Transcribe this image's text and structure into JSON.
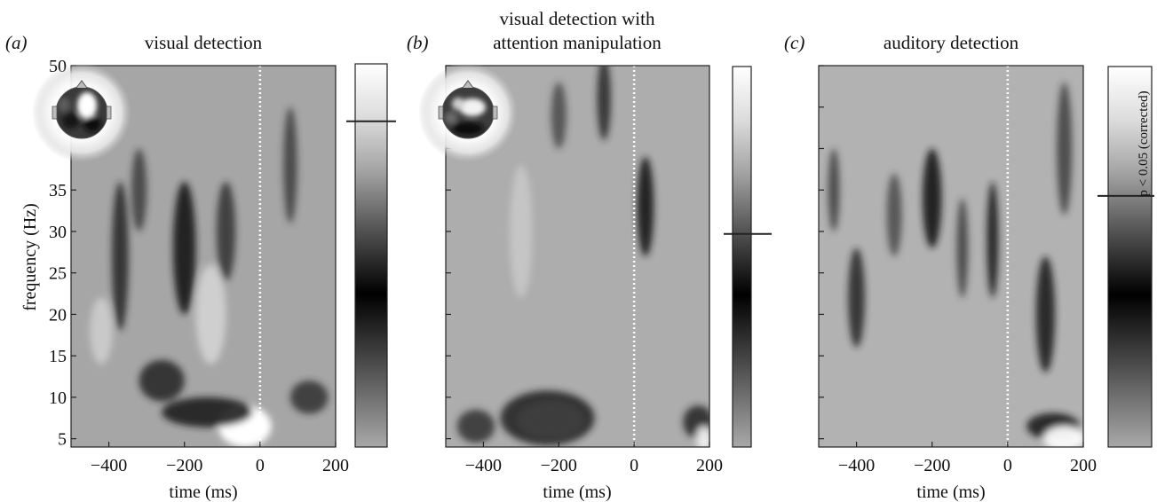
{
  "chart_data": [
    {
      "type": "heatmap",
      "panel_letter": "(a)",
      "title": "visual detection",
      "xlabel": "time (ms)",
      "ylabel": "frequency (Hz)",
      "xlim": [
        -500,
        200
      ],
      "ylim": [
        4,
        50
      ],
      "x_ticks": [
        -400,
        -200,
        0,
        200
      ],
      "y_ticks": [
        5,
        10,
        15,
        20,
        25,
        30,
        35,
        50
      ],
      "y_tick_labels": true,
      "stimulus_onset_ms": 0,
      "has_topography_inset": true,
      "colorbar": {
        "threshold_level": 0.85,
        "label": ""
      },
      "blobs": [
        {
          "t": -40,
          "f": 6.5,
          "rt": 70,
          "rf": 2.5,
          "v": 1.0
        },
        {
          "t": -140,
          "f": 8.2,
          "rt": 120,
          "rf": 1.8,
          "v": -0.8
        },
        {
          "t": -200,
          "f": 28,
          "rt": 30,
          "rf": 8,
          "v": -0.9
        },
        {
          "t": -90,
          "f": 30,
          "rt": 25,
          "rf": 6,
          "v": -0.6
        },
        {
          "t": -370,
          "f": 27,
          "rt": 22,
          "rf": 9,
          "v": -0.7
        },
        {
          "t": -260,
          "f": 12,
          "rt": 60,
          "rf": 2.5,
          "v": -0.7
        },
        {
          "t": 130,
          "f": 10,
          "rt": 50,
          "rf": 2,
          "v": -0.6
        },
        {
          "t": -130,
          "f": 20,
          "rt": 40,
          "rf": 6,
          "v": 0.4
        },
        {
          "t": -320,
          "f": 35,
          "rt": 20,
          "rf": 5,
          "v": -0.5
        },
        {
          "t": 80,
          "f": 38,
          "rt": 18,
          "rf": 7,
          "v": -0.5
        },
        {
          "t": -420,
          "f": 18,
          "rt": 30,
          "rf": 4,
          "v": 0.3
        }
      ]
    },
    {
      "type": "heatmap",
      "panel_letter": "(b)",
      "title": "visual detection with attention manipulation",
      "title_lines": [
        "visual detection with",
        "attention manipulation"
      ],
      "xlabel": "time (ms)",
      "ylabel": "",
      "xlim": [
        -500,
        200
      ],
      "ylim": [
        4,
        50
      ],
      "x_ticks": [
        -400,
        -200,
        0,
        200
      ],
      "y_ticks": [
        5,
        10,
        15,
        20,
        25,
        30,
        35,
        50
      ],
      "y_tick_labels": false,
      "stimulus_onset_ms": 0,
      "has_topography_inset": true,
      "colorbar": {
        "threshold_level": 0.56,
        "label": ""
      },
      "blobs": [
        {
          "t": -220,
          "f": 7.2,
          "rt": 85,
          "rf": 2.2,
          "v": 1.0
        },
        {
          "t": -230,
          "f": 7.5,
          "rt": 125,
          "rf": 3.3,
          "v": -0.75
        },
        {
          "t": 30,
          "f": 33,
          "rt": 22,
          "rf": 6,
          "v": -0.9
        },
        {
          "t": -80,
          "f": 46,
          "rt": 18,
          "rf": 5,
          "v": -0.7
        },
        {
          "t": -200,
          "f": 44,
          "rt": 20,
          "rf": 4,
          "v": -0.4
        },
        {
          "t": 170,
          "f": 7,
          "rt": 40,
          "rf": 2,
          "v": -0.7
        },
        {
          "t": 185,
          "f": 5,
          "rt": 20,
          "rf": 1.5,
          "v": 0.8
        },
        {
          "t": -300,
          "f": 30,
          "rt": 30,
          "rf": 8,
          "v": 0.2
        },
        {
          "t": -420,
          "f": 6.5,
          "rt": 50,
          "rf": 2,
          "v": -0.6
        }
      ]
    },
    {
      "type": "heatmap",
      "panel_letter": "(c)",
      "title": "auditory detection",
      "xlabel": "time (ms)",
      "ylabel": "",
      "xlim": [
        -500,
        200
      ],
      "ylim": [
        4,
        50
      ],
      "x_ticks": [
        -400,
        -200,
        0,
        200
      ],
      "y_ticks": [
        5,
        10,
        15,
        20,
        25,
        30,
        35,
        50
      ],
      "y_tick_labels": false,
      "stimulus_onset_ms": 0,
      "has_topography_inset": false,
      "colorbar": {
        "threshold_level": 0.66,
        "label": "p < 0.05 (corrected)"
      },
      "blobs": [
        {
          "t": -200,
          "f": 34,
          "rt": 25,
          "rf": 6,
          "v": -0.9
        },
        {
          "t": -40,
          "f": 29,
          "rt": 15,
          "rf": 7,
          "v": -0.85
        },
        {
          "t": -400,
          "f": 22,
          "rt": 22,
          "rf": 6,
          "v": -0.7
        },
        {
          "t": -120,
          "f": 28,
          "rt": 15,
          "rf": 6,
          "v": -0.5
        },
        {
          "t": 100,
          "f": 20,
          "rt": 25,
          "rf": 7,
          "v": -0.8
        },
        {
          "t": 120,
          "f": 6.5,
          "rt": 70,
          "rf": 1.6,
          "v": -0.8
        },
        {
          "t": 150,
          "f": 5,
          "rt": 55,
          "rf": 1.5,
          "v": 0.9
        },
        {
          "t": -460,
          "f": 35,
          "rt": 15,
          "rf": 5,
          "v": -0.5
        },
        {
          "t": 150,
          "f": 40,
          "rt": 20,
          "rf": 8,
          "v": -0.5
        },
        {
          "t": -300,
          "f": 32,
          "rt": 20,
          "rf": 5,
          "v": -0.4
        }
      ]
    }
  ]
}
